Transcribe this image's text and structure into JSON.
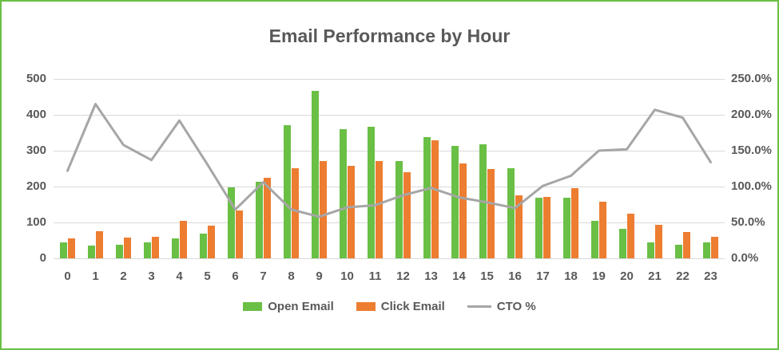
{
  "chart_data": {
    "type": "bar+line",
    "title": "Email Performance by Hour",
    "categories": [
      "0",
      "1",
      "2",
      "3",
      "4",
      "5",
      "6",
      "7",
      "8",
      "9",
      "10",
      "11",
      "12",
      "13",
      "14",
      "15",
      "16",
      "17",
      "18",
      "19",
      "20",
      "21",
      "22",
      "23"
    ],
    "series": [
      {
        "name": "Open Email",
        "type": "bar",
        "axis": "left",
        "color": "#6abf45",
        "values": [
          45,
          35,
          37,
          44,
          55,
          70,
          197,
          213,
          372,
          467,
          360,
          366,
          272,
          338,
          313,
          318,
          252,
          170,
          170,
          105,
          83,
          45,
          38,
          45
        ]
      },
      {
        "name": "Click Email",
        "type": "bar",
        "axis": "left",
        "color": "#ed7d31",
        "values": [
          55,
          75,
          57,
          60,
          105,
          92,
          133,
          225,
          252,
          272,
          257,
          272,
          240,
          330,
          265,
          248,
          176,
          172,
          196,
          158,
          125,
          93,
          74,
          60
        ]
      },
      {
        "name": "CTO %",
        "type": "line",
        "axis": "right",
        "color": "#a6a6a6",
        "values": [
          122,
          215,
          158,
          137,
          192,
          131,
          68,
          106,
          68,
          58,
          71,
          74,
          88,
          98,
          85,
          78,
          70,
          101,
          115,
          150,
          152,
          207,
          196,
          134
        ]
      }
    ],
    "left_axis": {
      "min": 0,
      "max": 500,
      "ticks": [
        "0",
        "100",
        "200",
        "300",
        "400",
        "500"
      ]
    },
    "right_axis": {
      "min": 0,
      "max": 250,
      "ticks": [
        "0.0%",
        "50.0%",
        "100.0%",
        "150.0%",
        "200.0%",
        "250.0%"
      ]
    },
    "grid": true,
    "legend_position": "bottom",
    "colors": {
      "frame_border": "#6abf45",
      "gridline": "#d9d9d9",
      "text": "#595959"
    }
  }
}
